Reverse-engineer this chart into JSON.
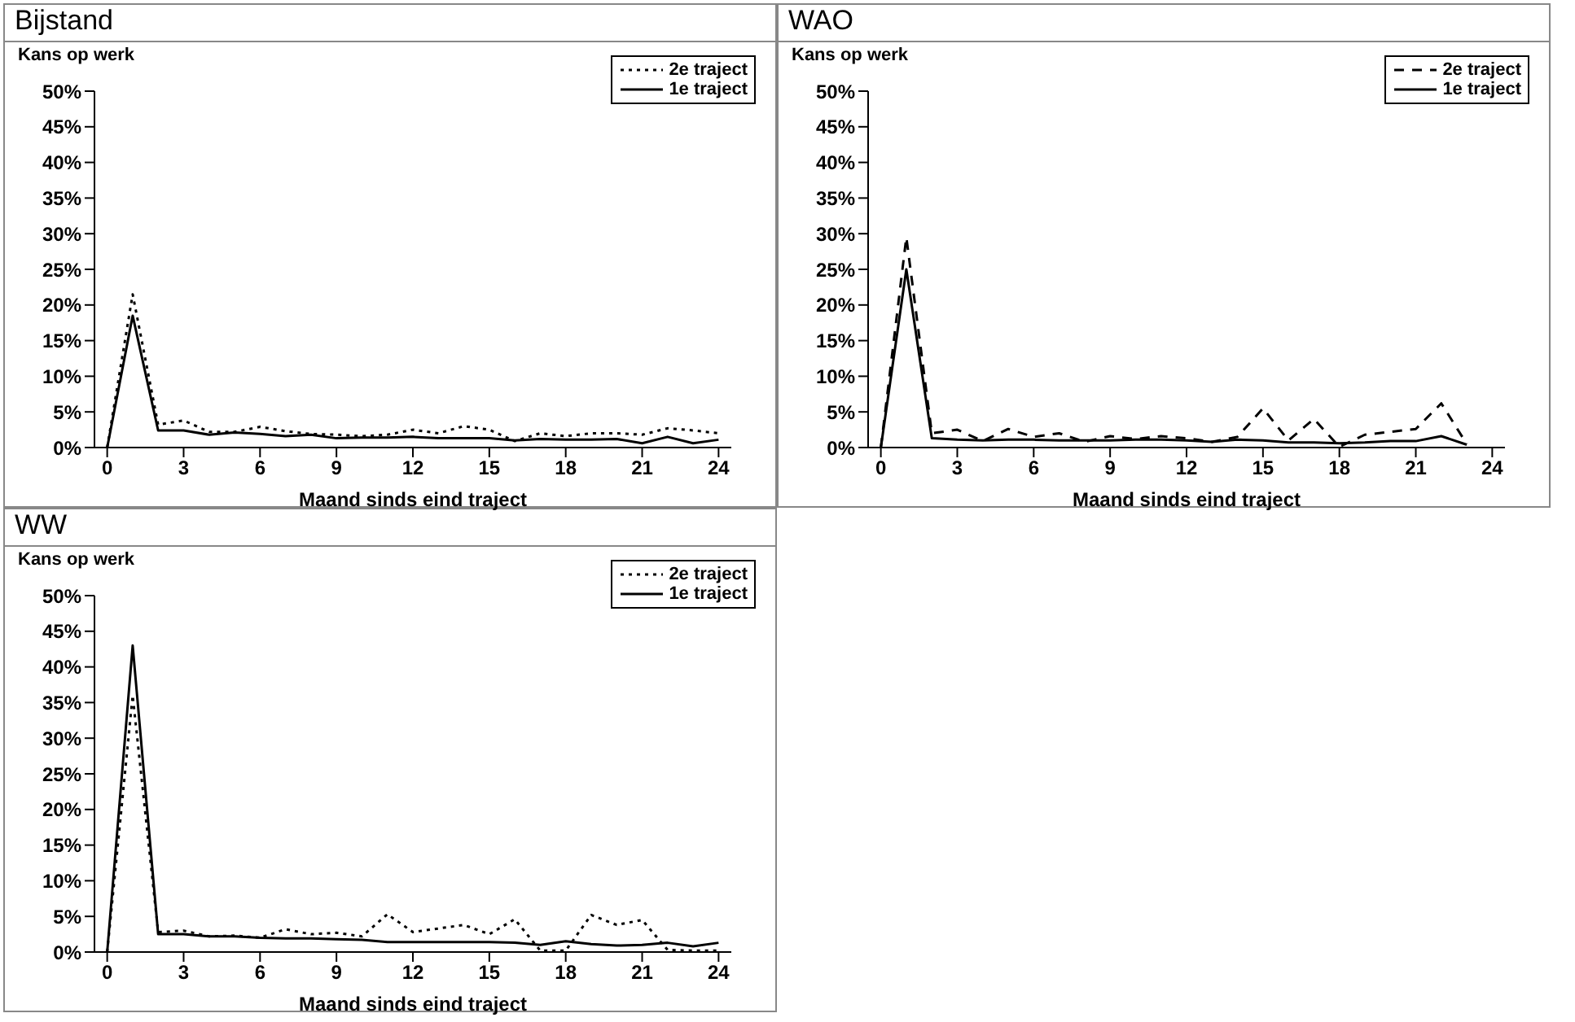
{
  "chart_data": [
    {
      "type": "line",
      "title": "Bijstand",
      "ylabel": "Kans op werk",
      "xlabel": "Maand sinds eind traject",
      "x": [
        0,
        1,
        2,
        3,
        4,
        5,
        6,
        7,
        8,
        9,
        10,
        11,
        12,
        13,
        14,
        15,
        16,
        17,
        18,
        19,
        20,
        21,
        22,
        23,
        24
      ],
      "xlim": [
        -0.5,
        24.5
      ],
      "xticks": [
        0,
        3,
        6,
        9,
        12,
        15,
        18,
        21,
        24
      ],
      "ylim": [
        0,
        50
      ],
      "yticks": [
        {
          "value": 0,
          "label": "0%"
        },
        {
          "value": 5,
          "label": "5%"
        },
        {
          "value": 10,
          "label": "10%"
        },
        {
          "value": 15,
          "label": "15%"
        },
        {
          "value": 20,
          "label": "20%"
        },
        {
          "value": 25,
          "label": "25%"
        },
        {
          "value": 30,
          "label": "30%"
        },
        {
          "value": 35,
          "label": "35%"
        },
        {
          "value": 40,
          "label": "40%"
        },
        {
          "value": 45,
          "label": "45%"
        },
        {
          "value": 50,
          "label": "50%"
        }
      ],
      "legend": "top right",
      "marker": "none",
      "series": [
        {
          "name": "2e traject",
          "color": "#000000",
          "line_style": "dotted",
          "values": [
            0,
            21.5,
            3.2,
            3.8,
            2.2,
            2.2,
            2.9,
            2.3,
            1.9,
            1.8,
            1.6,
            1.8,
            2.5,
            2.0,
            3.0,
            2.5,
            0.9,
            2.0,
            1.6,
            2.0,
            2.0,
            1.8,
            2.7,
            2.4,
            2.0
          ]
        },
        {
          "name": "1e traject",
          "color": "#000000",
          "line_style": "solid",
          "values": [
            0,
            18.5,
            2.4,
            2.4,
            1.8,
            2.1,
            1.9,
            1.6,
            1.8,
            1.3,
            1.4,
            1.4,
            1.5,
            1.3,
            1.3,
            1.3,
            1.0,
            1.2,
            1.1,
            1.1,
            1.2,
            0.6,
            1.5,
            0.6,
            1.1
          ]
        }
      ]
    },
    {
      "type": "line",
      "title": "WAO",
      "ylabel": "Kans op werk",
      "xlabel": "Maand sinds eind traject",
      "x": [
        0,
        1,
        2,
        3,
        4,
        5,
        6,
        7,
        8,
        9,
        10,
        11,
        12,
        13,
        14,
        15,
        16,
        17,
        18,
        19,
        20,
        21,
        22,
        23
      ],
      "xlim": [
        -0.5,
        24.5
      ],
      "xticks": [
        0,
        3,
        6,
        9,
        12,
        15,
        18,
        21,
        24
      ],
      "ylim": [
        0,
        50
      ],
      "yticks": [
        {
          "value": 0,
          "label": "0%"
        },
        {
          "value": 5,
          "label": "5%"
        },
        {
          "value": 10,
          "label": "10%"
        },
        {
          "value": 15,
          "label": "15%"
        },
        {
          "value": 20,
          "label": "20%"
        },
        {
          "value": 25,
          "label": "25%"
        },
        {
          "value": 30,
          "label": "30%"
        },
        {
          "value": 35,
          "label": "35%"
        },
        {
          "value": 40,
          "label": "40%"
        },
        {
          "value": 45,
          "label": "45%"
        },
        {
          "value": 50,
          "label": "50%"
        }
      ],
      "legend": "top right",
      "marker": "none",
      "series": [
        {
          "name": "2e traject",
          "color": "#000000",
          "line_style": "dashed",
          "values": [
            0,
            29.5,
            2.0,
            2.5,
            0.9,
            2.6,
            1.5,
            2.0,
            0.8,
            1.6,
            1.2,
            1.6,
            1.3,
            0.8,
            1.5,
            5.5,
            1.0,
            4.0,
            0.1,
            1.8,
            2.2,
            2.6,
            6.2,
            0.5
          ]
        },
        {
          "name": "1e traject",
          "color": "#000000",
          "line_style": "solid",
          "values": [
            0,
            25,
            1.3,
            1.1,
            1.0,
            1.1,
            1.1,
            1.0,
            1.0,
            1.0,
            1.1,
            1.1,
            1.0,
            0.8,
            1.1,
            1.0,
            0.7,
            0.7,
            0.6,
            0.7,
            0.9,
            0.9,
            1.6,
            0.4
          ]
        }
      ]
    },
    {
      "type": "line",
      "title": "WW",
      "ylabel": "Kans op werk",
      "xlabel": "Maand sinds eind traject",
      "x": [
        0,
        1,
        2,
        3,
        4,
        5,
        6,
        7,
        8,
        9,
        10,
        11,
        12,
        13,
        14,
        15,
        16,
        17,
        18,
        19,
        20,
        21,
        22,
        23,
        24
      ],
      "xlim": [
        -0.5,
        24.5
      ],
      "xticks": [
        0,
        3,
        6,
        9,
        12,
        15,
        18,
        21,
        24
      ],
      "ylim": [
        0,
        50
      ],
      "yticks": [
        {
          "value": 0,
          "label": "0%"
        },
        {
          "value": 5,
          "label": "5%"
        },
        {
          "value": 10,
          "label": "10%"
        },
        {
          "value": 15,
          "label": "15%"
        },
        {
          "value": 20,
          "label": "20%"
        },
        {
          "value": 25,
          "label": "25%"
        },
        {
          "value": 30,
          "label": "30%"
        },
        {
          "value": 35,
          "label": "35%"
        },
        {
          "value": 40,
          "label": "40%"
        },
        {
          "value": 45,
          "label": "45%"
        },
        {
          "value": 50,
          "label": "50%"
        }
      ],
      "legend": "top right",
      "marker": "none",
      "series": [
        {
          "name": "2e traject",
          "color": "#000000",
          "line_style": "dotted",
          "values": [
            0,
            36,
            2.8,
            3.0,
            2.2,
            2.3,
            2.0,
            3.2,
            2.5,
            2.7,
            2.2,
            5.3,
            2.8,
            3.3,
            3.8,
            2.5,
            4.6,
            0.2,
            0.2,
            5.2,
            3.8,
            4.5,
            0.3,
            0.2,
            0.2
          ]
        },
        {
          "name": "1e traject",
          "color": "#000000",
          "line_style": "solid",
          "values": [
            0,
            43,
            2.5,
            2.5,
            2.2,
            2.2,
            2.0,
            1.9,
            1.9,
            1.8,
            1.7,
            1.4,
            1.4,
            1.4,
            1.4,
            1.4,
            1.3,
            1.0,
            1.5,
            1.1,
            0.9,
            1.0,
            1.3,
            0.8,
            1.3
          ]
        }
      ]
    }
  ]
}
